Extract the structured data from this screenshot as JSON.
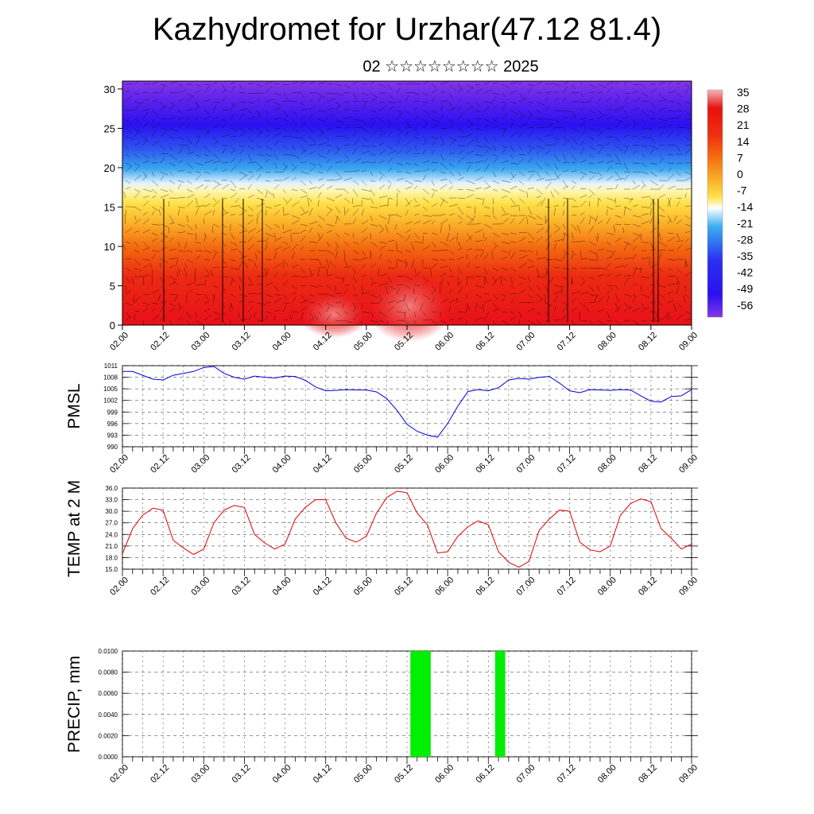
{
  "title": "Kazhydromet for Urzhar(47.12 81.4)",
  "subtitle": "02 ☆☆☆☆☆☆☆☆ 2025",
  "time_ticks": [
    "02.00",
    "02.12",
    "03.00",
    "03.12",
    "04.00",
    "04.12",
    "05.00",
    "05.12",
    "06.00",
    "06.12",
    "07.00",
    "07.12",
    "08.00",
    "08.12",
    "09.00"
  ],
  "chart_data": [
    {
      "type": "heatmap",
      "title": "",
      "xlabel": "",
      "ylabel": "",
      "x_ticks": [
        "02.00",
        "02.12",
        "03.00",
        "03.12",
        "04.00",
        "04.12",
        "05.00",
        "05.12",
        "06.00",
        "06.12",
        "07.00",
        "07.12",
        "08.00",
        "08.12",
        "09.00"
      ],
      "ylim": [
        0,
        31
      ],
      "y_ticks": [
        0,
        5,
        10,
        15,
        20,
        25,
        30
      ],
      "colorbar_labels": [
        "35",
        "28",
        "21",
        "14",
        "7",
        "0",
        "-7",
        "-14",
        "-21",
        "-28",
        "-35",
        "-42",
        "-49",
        "-56"
      ],
      "colors": {
        "warm": "#e8101a",
        "mid": "#ffe14a",
        "cool": "#3aa7f0",
        "cold": "#2a10f0",
        "top": "#8030e0"
      },
      "overlay": "wind vectors"
    },
    {
      "type": "line",
      "ylabel": "PMSL",
      "ylim": [
        990,
        1011
      ],
      "y_ticks": [
        "1011",
        "1008",
        "1005",
        "1002",
        "999",
        "996",
        "993",
        "990"
      ],
      "x_ticks": [
        "02.00",
        "02.12",
        "03.00",
        "03.12",
        "04.00",
        "04.12",
        "05.00",
        "05.12",
        "06.00",
        "06.12",
        "07.00",
        "07.12",
        "08.00",
        "08.12",
        "09.00"
      ],
      "color": "#0000dd",
      "x": [
        0,
        3,
        6,
        9,
        12,
        15,
        18,
        21,
        24,
        27,
        30,
        33,
        36,
        39,
        42,
        45,
        48,
        51,
        54,
        57,
        60,
        63,
        66,
        69,
        72,
        75,
        78,
        81,
        84,
        87,
        90,
        93,
        96,
        99,
        102,
        105,
        108,
        111,
        114,
        117,
        120,
        123,
        126,
        129,
        132,
        135,
        138,
        141,
        144,
        147,
        150,
        153,
        156,
        159,
        162,
        165,
        168
      ],
      "values": [
        1009.5,
        1009.5,
        1008.5,
        1007.5,
        1007.3,
        1008.5,
        1009,
        1009.5,
        1010.5,
        1010.8,
        1009,
        1008,
        1007.5,
        1008.3,
        1008,
        1007.8,
        1008.3,
        1008.2,
        1007.2,
        1005.5,
        1004.5,
        1004.6,
        1004.8,
        1004.7,
        1004.7,
        1004.2,
        1002.5,
        999.5,
        995.8,
        994,
        993,
        992.5,
        996,
        1000.5,
        1004.3,
        1004.8,
        1004.5,
        1005.3,
        1007.3,
        1007.7,
        1007.5,
        1008,
        1008.2,
        1006.5,
        1004.5,
        1004,
        1004.8,
        1004.7,
        1004.6,
        1004.8,
        1004.7,
        1003.2,
        1001.8,
        1001.6,
        1003,
        1003.2,
        1004.8
      ]
    },
    {
      "type": "line",
      "ylabel": "TEMP at 2 M",
      "ylim": [
        15,
        36
      ],
      "y_ticks": [
        "36.0",
        "33.0",
        "30.0",
        "27.0",
        "24.0",
        "21.0",
        "18.0",
        "15.0"
      ],
      "x_ticks": [
        "02.00",
        "02.12",
        "03.00",
        "03.12",
        "04.00",
        "04.12",
        "05.00",
        "05.12",
        "06.00",
        "06.12",
        "07.00",
        "07.12",
        "08.00",
        "08.12",
        "09.00"
      ],
      "color": "#dd0000",
      "x": [
        0,
        3,
        6,
        9,
        12,
        15,
        18,
        21,
        24,
        27,
        30,
        33,
        36,
        39,
        42,
        45,
        48,
        51,
        54,
        57,
        60,
        63,
        66,
        69,
        72,
        75,
        78,
        81,
        84,
        87,
        90,
        93,
        96,
        99,
        102,
        105,
        108,
        111,
        114,
        117,
        120,
        123,
        126,
        129,
        132,
        135,
        138,
        141,
        144,
        147,
        150,
        153,
        156,
        159,
        162,
        165,
        168
      ],
      "values": [
        19,
        25.5,
        29,
        30.8,
        30.3,
        22.5,
        20.5,
        18.8,
        20.2,
        27,
        30.3,
        31.5,
        31,
        24,
        21.8,
        20.2,
        21.5,
        28,
        31,
        33,
        33,
        27,
        23,
        22,
        23.5,
        29.5,
        33.5,
        35.2,
        34.8,
        29.5,
        26.5,
        19.2,
        19.5,
        23.5,
        26,
        27.5,
        26.5,
        19.5,
        16.8,
        15.5,
        17,
        25,
        28,
        30.3,
        30,
        22,
        20,
        19.5,
        21,
        29,
        32,
        33.2,
        32.5,
        25.5,
        23,
        20.2,
        21.5
      ]
    },
    {
      "type": "bar",
      "ylabel": "PRECIP, mm",
      "ylim": [
        0,
        0.01
      ],
      "y_ticks": [
        "0.0100",
        "0.0080",
        "0.0060",
        "0.0040",
        "0.0020",
        "0.0000"
      ],
      "x_ticks": [
        "02.00",
        "02.12",
        "03.00",
        "03.12",
        "04.00",
        "04.12",
        "05.00",
        "05.12",
        "06.00",
        "06.12",
        "07.00",
        "07.12",
        "08.00",
        "08.12",
        "09.00"
      ],
      "color": "#00ee00",
      "bars": [
        {
          "x_start": 85,
          "x_end": 91,
          "value": 0.01
        },
        {
          "x_start": 110,
          "x_end": 113,
          "value": 0.01
        }
      ]
    }
  ]
}
